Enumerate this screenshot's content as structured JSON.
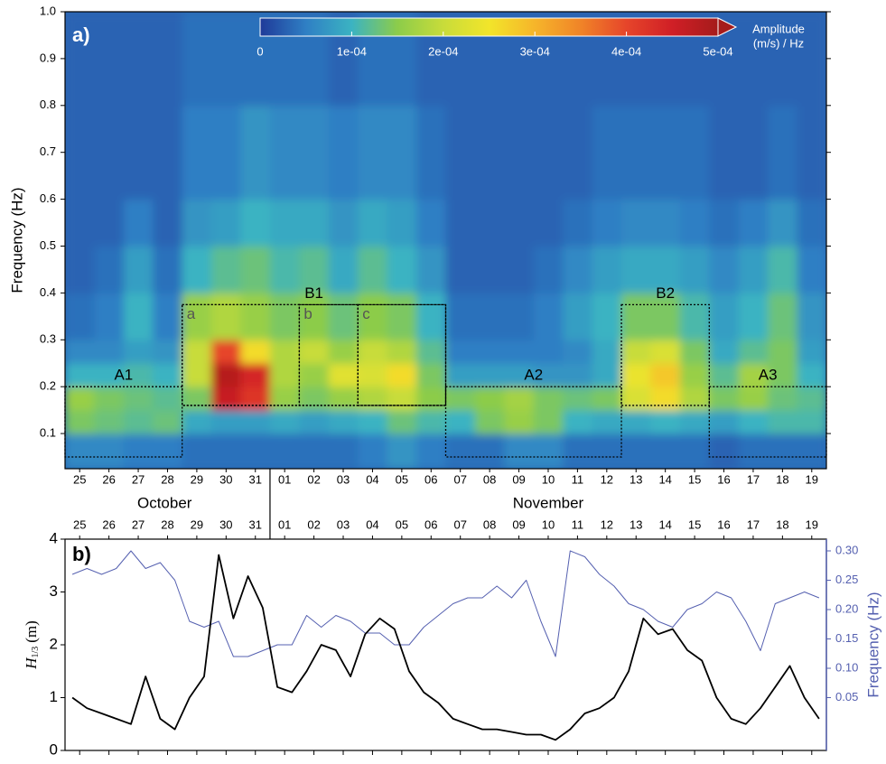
{
  "chart_data": [
    {
      "type": "heatmap",
      "panel_label": "a)",
      "y_label": "Frequency (Hz)",
      "xlim": [
        0,
        26
      ],
      "ylim": [
        0.025,
        1.0
      ],
      "yticks": [
        0.1,
        0.2,
        0.3,
        0.4,
        0.5,
        0.6,
        0.7,
        0.8,
        0.9,
        {
          "value": 1,
          "label": "1.0"
        }
      ],
      "xticks": [
        {
          "value": 0.5,
          "label": "25"
        },
        {
          "value": 1.5,
          "label": "26"
        },
        {
          "value": 2.5,
          "label": "27"
        },
        {
          "value": 3.5,
          "label": "28"
        },
        {
          "value": 4.5,
          "label": "29"
        },
        {
          "value": 5.5,
          "label": "30"
        },
        {
          "value": 6.5,
          "label": "31"
        },
        {
          "value": 7.5,
          "label": "01"
        },
        {
          "value": 8.5,
          "label": "02"
        },
        {
          "value": 9.5,
          "label": "03"
        },
        {
          "value": 10.5,
          "label": "04"
        },
        {
          "value": 11.5,
          "label": "05"
        },
        {
          "value": 12.5,
          "label": "06"
        },
        {
          "value": 13.5,
          "label": "07"
        },
        {
          "value": 14.5,
          "label": "08"
        },
        {
          "value": 15.5,
          "label": "09"
        },
        {
          "value": 16.5,
          "label": "10"
        },
        {
          "value": 17.5,
          "label": "11"
        },
        {
          "value": 18.5,
          "label": "12"
        },
        {
          "value": 19.5,
          "label": "13"
        },
        {
          "value": 20.5,
          "label": "14"
        },
        {
          "value": 21.5,
          "label": "15"
        },
        {
          "value": 22.5,
          "label": "16"
        },
        {
          "value": 23.5,
          "label": "17"
        },
        {
          "value": 24.5,
          "label": "18"
        },
        {
          "value": 25.5,
          "label": "19"
        }
      ],
      "months": [
        {
          "label": "October",
          "value": 3.4
        },
        {
          "label": "November",
          "value": 16.5
        }
      ],
      "month_divider": 7,
      "x_edges": [
        0,
        1,
        2,
        3,
        4,
        5,
        6,
        7,
        8,
        9,
        10,
        11,
        12,
        13,
        14,
        15,
        16,
        17,
        18,
        19,
        20,
        21,
        22,
        23,
        24,
        25,
        26
      ],
      "y_edges": [
        0.025,
        0.1,
        0.15,
        0.2,
        0.25,
        0.3,
        0.4,
        0.5,
        0.6,
        0.8,
        1.0
      ],
      "z": [
        [
          6e-05,
          6e-05,
          5e-05,
          5e-05,
          4e-05,
          4e-05,
          4e-05,
          4e-05,
          4e-05,
          4e-05,
          5e-05,
          7e-05,
          5e-05,
          4e-05,
          4e-05,
          6e-05,
          6e-05,
          4e-05,
          4e-05,
          4e-05,
          4e-05,
          4e-05,
          3e-05,
          4e-05,
          4e-05,
          4e-05
        ],
        [
          0.00014,
          0.00013,
          0.00012,
          0.00013,
          9e-05,
          8e-05,
          8e-05,
          9e-05,
          8e-05,
          9e-05,
          0.0001,
          0.00013,
          0.00011,
          0.0001,
          0.00014,
          0.00016,
          0.00014,
          0.0001,
          9e-05,
          9e-05,
          0.0001,
          9e-05,
          8e-05,
          0.0001,
          0.00011,
          0.00011
        ],
        [
          0.00016,
          0.00014,
          0.00013,
          0.00012,
          0.00014,
          0.00046,
          0.00042,
          0.00016,
          0.00014,
          0.00016,
          0.00018,
          0.0002,
          0.00015,
          0.00014,
          0.00015,
          0.00017,
          0.00014,
          0.00013,
          0.00014,
          0.00022,
          0.00026,
          0.00018,
          0.00014,
          0.00016,
          0.00013,
          0.00012
        ],
        [
          0.0001,
          0.0001,
          0.00011,
          0.0001,
          0.0002,
          0.00048,
          0.00044,
          0.00018,
          0.00016,
          0.00023,
          0.00022,
          0.00026,
          0.00014,
          8e-05,
          8e-05,
          8e-05,
          7e-05,
          7e-05,
          9e-05,
          0.00024,
          0.00028,
          0.00016,
          0.00012,
          0.00017,
          0.00014,
          0.0001
        ],
        [
          6e-05,
          6e-05,
          8e-05,
          7e-05,
          0.0002,
          0.0004,
          0.00026,
          0.00018,
          0.0002,
          0.00016,
          0.0002,
          0.00018,
          0.00012,
          5e-05,
          5e-05,
          5e-05,
          5e-05,
          6e-05,
          9e-05,
          0.0002,
          0.00022,
          0.00014,
          9e-05,
          0.00012,
          0.00014,
          8e-05
        ],
        [
          4e-05,
          5e-05,
          0.0001,
          5e-05,
          0.00016,
          0.00018,
          0.00016,
          0.00014,
          0.00015,
          0.00013,
          0.00015,
          0.00014,
          0.0001,
          4e-05,
          4e-05,
          4e-05,
          5e-05,
          8e-05,
          0.0001,
          0.00014,
          0.00014,
          0.00011,
          8e-05,
          0.0001,
          0.00013,
          7e-05
        ],
        [
          3e-05,
          4e-05,
          8e-05,
          4e-05,
          0.0001,
          0.00012,
          0.00013,
          0.00011,
          0.00012,
          9e-05,
          0.00012,
          0.0001,
          7e-05,
          3e-05,
          3e-05,
          3e-05,
          4e-05,
          6e-05,
          8e-05,
          9e-05,
          9e-05,
          8e-05,
          6e-05,
          8e-05,
          0.00011,
          5e-05
        ],
        [
          3e-05,
          3e-05,
          5e-05,
          3e-05,
          7e-05,
          8e-05,
          0.0001,
          9e-05,
          9e-05,
          7e-05,
          9e-05,
          8e-05,
          5e-05,
          3e-05,
          3e-05,
          3e-05,
          3e-05,
          4e-05,
          5e-05,
          6e-05,
          6e-05,
          5e-05,
          4e-05,
          5e-05,
          7e-05,
          4e-05
        ],
        [
          3e-05,
          3e-05,
          3e-05,
          3e-05,
          5e-05,
          5e-05,
          7e-05,
          6e-05,
          6e-05,
          5e-05,
          6e-05,
          6e-05,
          4e-05,
          3e-05,
          3e-05,
          3e-05,
          3e-05,
          3e-05,
          4e-05,
          4e-05,
          4e-05,
          4e-05,
          3e-05,
          3e-05,
          4e-05,
          3e-05
        ],
        [
          3e-05,
          3e-05,
          3e-05,
          3e-05,
          4e-05,
          4e-05,
          4e-05,
          4e-05,
          4e-05,
          3e-05,
          4e-05,
          4e-05,
          3e-05,
          3e-05,
          3e-05,
          3e-05,
          3e-05,
          3e-05,
          3e-05,
          3e-05,
          3e-05,
          3e-05,
          3e-05,
          3e-05,
          3e-05,
          3e-05
        ]
      ],
      "colorbar": {
        "label": [
          "Amplitude",
          "(m/s) / Hz"
        ],
        "lim": [
          0,
          0.0005
        ],
        "ticks": [
          0,
          {
            "value": 0.0001,
            "label": "1e-04"
          },
          {
            "value": 0.0002,
            "label": "2e-04"
          },
          {
            "value": 0.0003,
            "label": "3e-04"
          },
          {
            "value": 0.0004,
            "label": "4e-04"
          },
          {
            "value": 0.0005,
            "label": "5e-04"
          }
        ],
        "colors": [
          "#1f3a99",
          "#2f7fc4",
          "#3bb3c2",
          "#8ccc4a",
          "#c8dc3a",
          "#f2e52a",
          "#f6b52a",
          "#f08428",
          "#e6452a",
          "#d01f26",
          "#a51b1b"
        ]
      },
      "boxes": [
        {
          "label": "A1",
          "x": [
            0,
            4
          ],
          "y": [
            0.05,
            0.2
          ]
        },
        {
          "label": "B1",
          "x": [
            4,
            13
          ],
          "y": [
            0.16,
            0.375
          ]
        },
        {
          "label": "a",
          "x": [
            4,
            8
          ],
          "y": [
            0.16,
            0.375
          ]
        },
        {
          "label": "b",
          "x": [
            8,
            10
          ],
          "y": [
            0.16,
            0.375
          ]
        },
        {
          "label": "c",
          "x": [
            10,
            13
          ],
          "y": [
            0.16,
            0.375
          ]
        },
        {
          "label": "A2",
          "x": [
            13,
            19
          ],
          "y": [
            0.05,
            0.2
          ]
        },
        {
          "label": "B2",
          "x": [
            19,
            22
          ],
          "y": [
            0.16,
            0.375
          ]
        },
        {
          "label": "A3",
          "x": [
            22,
            26
          ],
          "y": [
            0.05,
            0.2
          ]
        }
      ]
    },
    {
      "type": "line",
      "panel_label": "b)",
      "y_label": "H",
      "y_label_sub": "1/3",
      "y_label_unit": "(m)",
      "y2_label": "Frequency (Hz)",
      "xlim": [
        0,
        26
      ],
      "ylim": [
        0,
        4
      ],
      "yticks": [
        0,
        1,
        2,
        3,
        4
      ],
      "y2lim": [
        -0.04,
        0.32
      ],
      "y2ticks": [
        {
          "value": 0.05,
          "label": "0.05"
        },
        {
          "value": 0.1,
          "label": "0.10"
        },
        {
          "value": 0.15,
          "label": "0.15"
        },
        {
          "value": 0.2,
          "label": "0.20"
        },
        {
          "value": 0.25,
          "label": "0.25"
        },
        {
          "value": 0.3,
          "label": "0.30"
        }
      ],
      "xticks": [
        {
          "value": 0.5,
          "label": "25"
        },
        {
          "value": 1.5,
          "label": "26"
        },
        {
          "value": 2.5,
          "label": "27"
        },
        {
          "value": 3.5,
          "label": "28"
        },
        {
          "value": 4.5,
          "label": "29"
        },
        {
          "value": 5.5,
          "label": "30"
        },
        {
          "value": 6.5,
          "label": "31"
        },
        {
          "value": 7.5,
          "label": "01"
        },
        {
          "value": 8.5,
          "label": "02"
        },
        {
          "value": 9.5,
          "label": "03"
        },
        {
          "value": 10.5,
          "label": "04"
        },
        {
          "value": 11.5,
          "label": "05"
        },
        {
          "value": 12.5,
          "label": "06"
        },
        {
          "value": 13.5,
          "label": "07"
        },
        {
          "value": 14.5,
          "label": "08"
        },
        {
          "value": 15.5,
          "label": "09"
        },
        {
          "value": 16.5,
          "label": "10"
        },
        {
          "value": 17.5,
          "label": "11"
        },
        {
          "value": 18.5,
          "label": "12"
        },
        {
          "value": 19.5,
          "label": "13"
        },
        {
          "value": 20.5,
          "label": "14"
        },
        {
          "value": 21.5,
          "label": "15"
        },
        {
          "value": 22.5,
          "label": "16"
        },
        {
          "value": 23.5,
          "label": "17"
        },
        {
          "value": 24.5,
          "label": "18"
        },
        {
          "value": 25.5,
          "label": "19"
        }
      ],
      "x": [
        0.25,
        0.75,
        1.25,
        1.75,
        2.25,
        2.75,
        3.25,
        3.75,
        4.25,
        4.75,
        5.25,
        5.75,
        6.25,
        6.75,
        7.25,
        7.75,
        8.25,
        8.75,
        9.25,
        9.75,
        10.25,
        10.75,
        11.25,
        11.75,
        12.25,
        12.75,
        13.25,
        13.75,
        14.25,
        14.75,
        15.25,
        15.75,
        16.25,
        16.75,
        17.25,
        17.75,
        18.25,
        18.75,
        19.25,
        19.75,
        20.25,
        20.75,
        21.25,
        21.75,
        22.25,
        22.75,
        23.25,
        23.75,
        24.25,
        24.75,
        25.25,
        25.75
      ],
      "series": [
        {
          "color": "#000000",
          "values": [
            1.0,
            0.8,
            0.7,
            0.6,
            0.5,
            1.4,
            0.6,
            0.4,
            1.0,
            1.4,
            3.7,
            2.5,
            3.3,
            2.7,
            1.2,
            1.1,
            1.5,
            2.0,
            1.9,
            1.4,
            2.2,
            2.5,
            2.3,
            1.5,
            1.1,
            0.9,
            0.6,
            0.5,
            0.4,
            0.4,
            0.35,
            0.3,
            0.3,
            0.2,
            0.4,
            0.7,
            0.8,
            1.0,
            1.5,
            2.5,
            2.2,
            2.3,
            1.9,
            1.7,
            1.0,
            0.6,
            0.5,
            0.8,
            1.2,
            1.6,
            1.0,
            0.6
          ]
        },
        {
          "color": "#5560b0",
          "axis": "y2",
          "values": [
            0.26,
            0.27,
            0.26,
            0.27,
            0.3,
            0.27,
            0.28,
            0.25,
            0.18,
            0.17,
            0.18,
            0.12,
            0.12,
            0.13,
            0.14,
            0.14,
            0.19,
            0.17,
            0.19,
            0.18,
            0.16,
            0.16,
            0.14,
            0.14,
            0.17,
            0.19,
            0.21,
            0.22,
            0.22,
            0.24,
            0.22,
            0.25,
            0.18,
            0.12,
            0.3,
            0.29,
            0.26,
            0.24,
            0.21,
            0.2,
            0.18,
            0.17,
            0.2,
            0.21,
            0.23,
            0.22,
            0.18,
            0.13,
            0.21,
            0.22,
            0.23,
            0.22
          ]
        }
      ]
    }
  ]
}
